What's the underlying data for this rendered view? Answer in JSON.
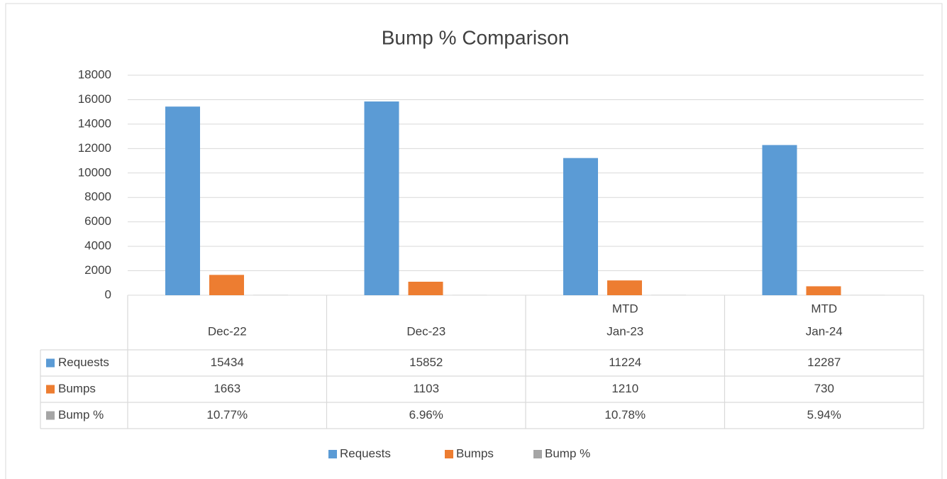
{
  "chart_data": {
    "type": "bar",
    "title": "Bump % Comparison",
    "categories": [
      [
        "Dec-22"
      ],
      [
        "Dec-23"
      ],
      [
        "MTD",
        "Jan-23"
      ],
      [
        "MTD",
        "Jan-24"
      ]
    ],
    "series": [
      {
        "name": "Requests",
        "color": "#5b9bd5",
        "values": [
          15434,
          15852,
          11224,
          12287
        ]
      },
      {
        "name": "Bumps",
        "color": "#ed7d31",
        "values": [
          1663,
          1103,
          1210,
          730
        ]
      },
      {
        "name": "Bump %",
        "color": "#a5a5a5",
        "values": [
          10.77,
          6.96,
          10.78,
          5.94
        ],
        "value_labels": [
          "10.77%",
          "6.96%",
          "10.78%",
          "5.94%"
        ]
      }
    ],
    "ylim": [
      0,
      18000
    ],
    "yticks": [
      0,
      2000,
      4000,
      6000,
      8000,
      10000,
      12000,
      14000,
      16000,
      18000
    ],
    "grid": true,
    "legend": "bottom"
  }
}
